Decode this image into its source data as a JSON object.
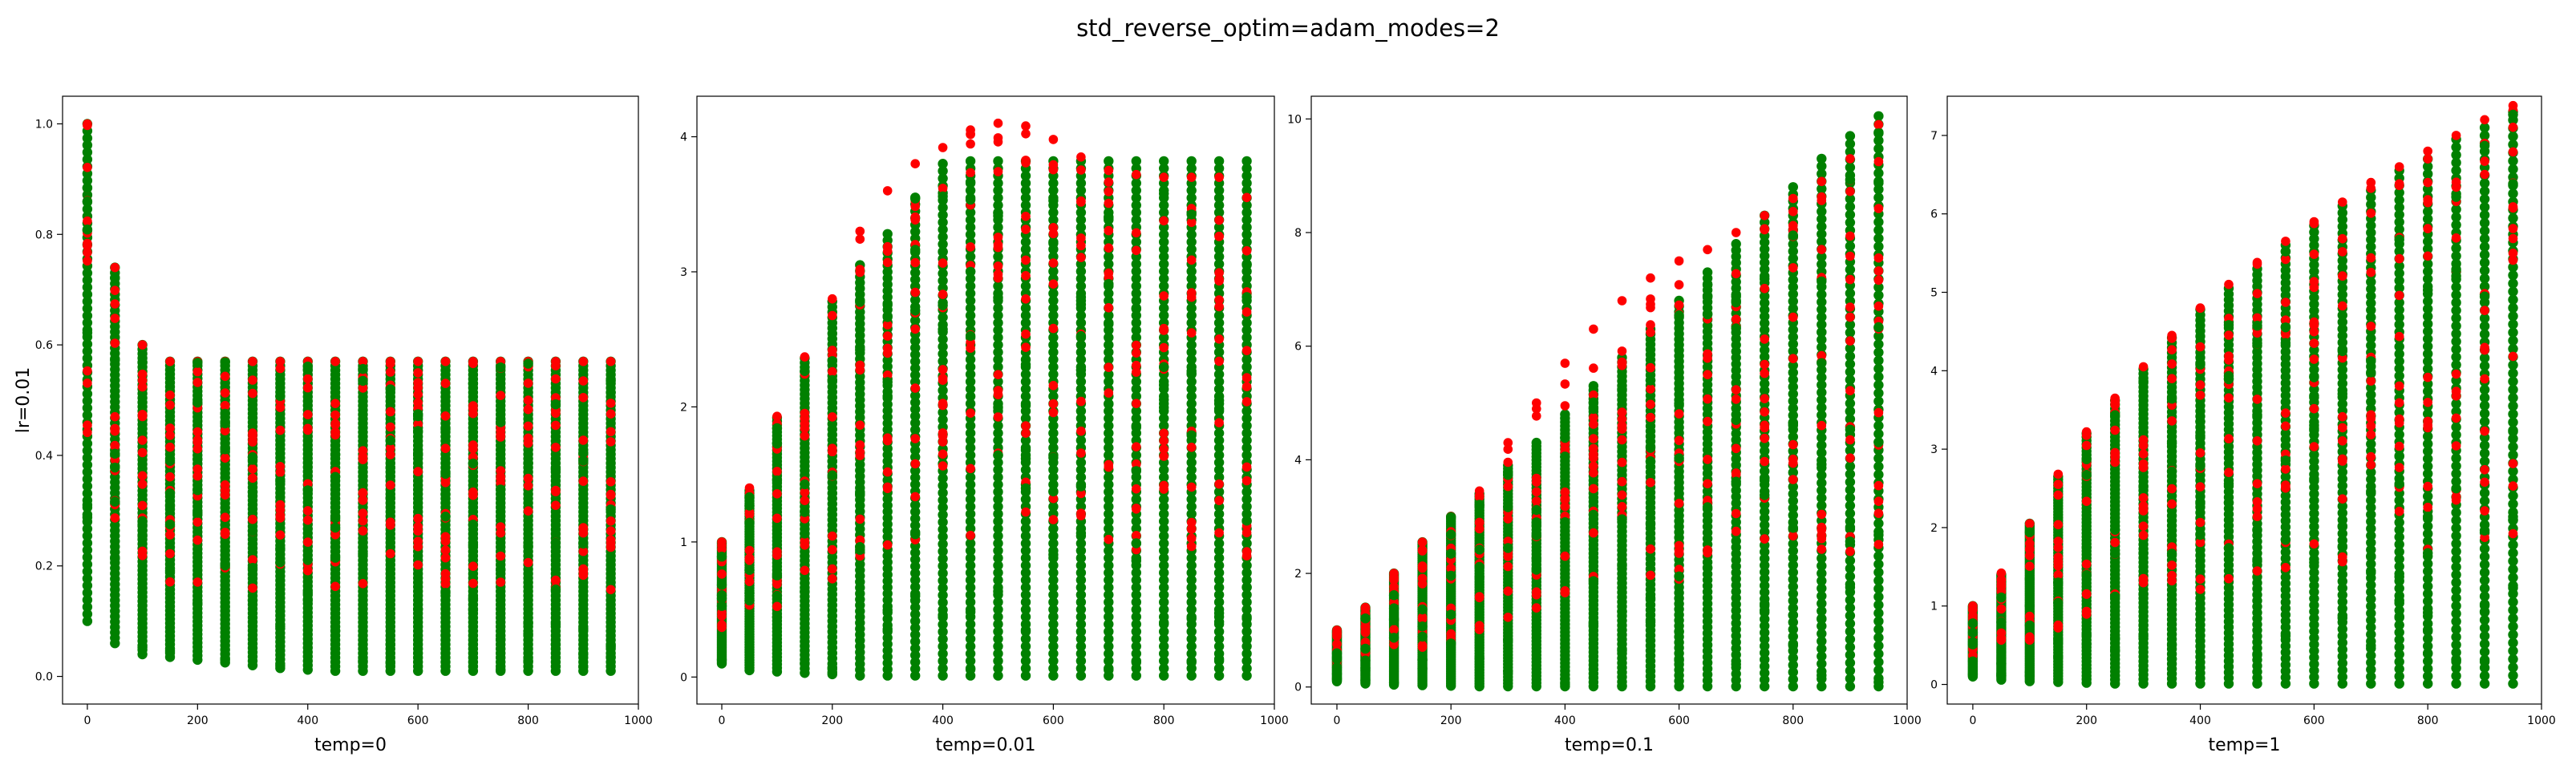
{
  "figure": {
    "suptitle": "std_reverse_optim=adam_modes=2",
    "colors": {
      "primary": "#008000",
      "secondary": "#ff0000"
    }
  },
  "chart_data": [
    {
      "type": "scatter",
      "title": "",
      "xlabel": "temp=0",
      "ylabel": "lr=0.01",
      "xlim": [
        -45,
        1000
      ],
      "ylim": [
        -0.05,
        1.05
      ],
      "xticks": [
        "0",
        "200",
        "400",
        "600",
        "800",
        "1000"
      ],
      "yticks": [
        "0.0",
        "0.2",
        "0.4",
        "0.6",
        "0.8",
        "1.0"
      ],
      "x": [
        0,
        50,
        100,
        150,
        200,
        250,
        300,
        350,
        400,
        450,
        500,
        550,
        600,
        650,
        700,
        750,
        800,
        850,
        900,
        950
      ],
      "series": [
        {
          "color": "#008000",
          "y_min": [
            0.1,
            0.06,
            0.04,
            0.035,
            0.03,
            0.025,
            0.02,
            0.015,
            0.012,
            0.01,
            0.01,
            0.01,
            0.01,
            0.01,
            0.01,
            0.01,
            0.01,
            0.01,
            0.01,
            0.01
          ],
          "y_max": [
            1.0,
            0.74,
            0.6,
            0.57,
            0.57,
            0.57,
            0.57,
            0.57,
            0.57,
            0.57,
            0.57,
            0.57,
            0.57,
            0.57,
            0.57,
            0.57,
            0.57,
            0.57,
            0.57,
            0.57
          ]
        },
        {
          "color": "#ff0000",
          "y_min": [
            0.1,
            0.06,
            0.04,
            0.035,
            0.03,
            0.025,
            0.02,
            0.015,
            0.012,
            0.01,
            0.01,
            0.01,
            0.01,
            0.01,
            0.01,
            0.01,
            0.01,
            0.01,
            0.01,
            0.01
          ],
          "y_max": [
            1.0,
            0.74,
            0.6,
            0.57,
            0.57,
            0.57,
            0.57,
            0.57,
            0.57,
            0.57,
            0.57,
            0.57,
            0.57,
            0.57,
            0.57,
            0.57,
            0.57,
            0.57,
            0.57,
            0.57
          ]
        }
      ]
    },
    {
      "type": "scatter",
      "title": "",
      "xlabel": "temp=0.01",
      "ylabel": "",
      "xlim": [
        -45,
        1000
      ],
      "ylim": [
        -0.2,
        4.3
      ],
      "xticks": [
        "0",
        "200",
        "400",
        "600",
        "800",
        "1000"
      ],
      "yticks": [
        "0",
        "1",
        "2",
        "3",
        "4"
      ],
      "x": [
        0,
        50,
        100,
        150,
        200,
        250,
        300,
        350,
        400,
        450,
        500,
        550,
        600,
        650,
        700,
        750,
        800,
        850,
        900,
        950
      ],
      "series": [
        {
          "color": "#008000",
          "y_min": [
            0.1,
            0.05,
            0.04,
            0.03,
            0.02,
            0.01,
            0.01,
            0.01,
            0.01,
            0.01,
            0.01,
            0.01,
            0.01,
            0.01,
            0.01,
            0.01,
            0.01,
            0.01,
            0.01,
            0.01
          ],
          "y_max": [
            1.0,
            1.38,
            1.92,
            2.36,
            2.78,
            3.05,
            3.28,
            3.55,
            3.8,
            3.82,
            3.82,
            3.82,
            3.82,
            3.82,
            3.82,
            3.82,
            3.82,
            3.82,
            3.82,
            3.82
          ]
        },
        {
          "color": "#ff0000",
          "y_min": [
            0.1,
            0.05,
            0.04,
            0.03,
            0.02,
            0.01,
            0.01,
            0.01,
            0.01,
            0.01,
            0.01,
            0.01,
            0.01,
            0.01,
            0.01,
            0.01,
            0.01,
            0.01,
            0.01,
            0.01
          ],
          "y_max": [
            1.0,
            1.4,
            1.93,
            2.37,
            2.8,
            3.3,
            3.6,
            3.8,
            3.92,
            4.05,
            4.1,
            4.08,
            3.98,
            3.85,
            3.75,
            3.72,
            3.7,
            3.7,
            3.7,
            3.55
          ]
        }
      ]
    },
    {
      "type": "scatter",
      "title": "",
      "xlabel": "temp=0.1",
      "ylabel": "",
      "xlim": [
        -45,
        1000
      ],
      "ylim": [
        -0.3,
        10.4
      ],
      "xticks": [
        "0",
        "200",
        "400",
        "600",
        "800",
        "1000"
      ],
      "yticks": [
        "0",
        "2",
        "4",
        "6",
        "8",
        "10"
      ],
      "x": [
        0,
        50,
        100,
        150,
        200,
        250,
        300,
        350,
        400,
        450,
        500,
        550,
        600,
        650,
        700,
        750,
        800,
        850,
        900,
        950
      ],
      "series": [
        {
          "color": "#008000",
          "y_min": [
            0.1,
            0.06,
            0.04,
            0.03,
            0.02,
            0.01,
            0.01,
            0.01,
            0.01,
            0.01,
            0.01,
            0.01,
            0.01,
            0.01,
            0.01,
            0.01,
            0.01,
            0.01,
            0.01,
            0.01
          ],
          "y_max": [
            1.0,
            1.4,
            2.0,
            2.55,
            3.0,
            3.4,
            3.9,
            4.3,
            4.8,
            5.3,
            5.8,
            6.3,
            6.8,
            7.3,
            7.8,
            8.3,
            8.8,
            9.3,
            9.7,
            10.05
          ]
        },
        {
          "color": "#ff0000",
          "y_min": [
            0.1,
            0.06,
            0.04,
            0.03,
            0.02,
            0.01,
            0.01,
            0.01,
            0.01,
            0.01,
            0.01,
            0.01,
            0.01,
            0.01,
            0.01,
            0.01,
            0.01,
            0.01,
            0.01,
            0.01
          ],
          "y_max": [
            1.0,
            1.4,
            2.0,
            2.55,
            3.0,
            3.45,
            4.3,
            5.0,
            5.7,
            6.3,
            6.8,
            7.2,
            7.5,
            7.7,
            8.0,
            8.3,
            8.6,
            8.9,
            9.3,
            9.9
          ]
        }
      ]
    },
    {
      "type": "scatter",
      "title": "",
      "xlabel": "temp=1",
      "ylabel": "",
      "xlim": [
        -45,
        1000
      ],
      "ylim": [
        -0.25,
        7.5
      ],
      "xticks": [
        "0",
        "200",
        "400",
        "600",
        "800",
        "1000"
      ],
      "yticks": [
        "0",
        "1",
        "2",
        "3",
        "4",
        "5",
        "6",
        "7"
      ],
      "x": [
        0,
        50,
        100,
        150,
        200,
        250,
        300,
        350,
        400,
        450,
        500,
        550,
        600,
        650,
        700,
        750,
        800,
        850,
        900,
        950
      ],
      "series": [
        {
          "color": "#008000",
          "y_min": [
            0.1,
            0.06,
            0.04,
            0.03,
            0.02,
            0.01,
            0.01,
            0.01,
            0.01,
            0.01,
            0.01,
            0.01,
            0.01,
            0.01,
            0.01,
            0.01,
            0.01,
            0.01,
            0.01,
            0.01
          ],
          "y_max": [
            1.0,
            1.4,
            2.05,
            2.65,
            3.2,
            3.62,
            4.02,
            4.42,
            4.78,
            5.05,
            5.3,
            5.6,
            5.85,
            6.1,
            6.3,
            6.55,
            6.7,
            6.95,
            7.1,
            7.3
          ]
        },
        {
          "color": "#ff0000",
          "y_min": [
            0.1,
            0.06,
            0.04,
            0.03,
            0.02,
            0.01,
            0.01,
            0.01,
            0.01,
            0.01,
            0.01,
            0.01,
            0.01,
            0.01,
            0.01,
            0.01,
            0.01,
            0.01,
            0.01,
            0.01
          ],
          "y_max": [
            1.0,
            1.42,
            2.05,
            2.68,
            3.22,
            3.65,
            4.05,
            4.45,
            4.8,
            5.1,
            5.38,
            5.65,
            5.9,
            6.15,
            6.4,
            6.6,
            6.8,
            7.0,
            7.2,
            7.38
          ]
        }
      ]
    }
  ]
}
